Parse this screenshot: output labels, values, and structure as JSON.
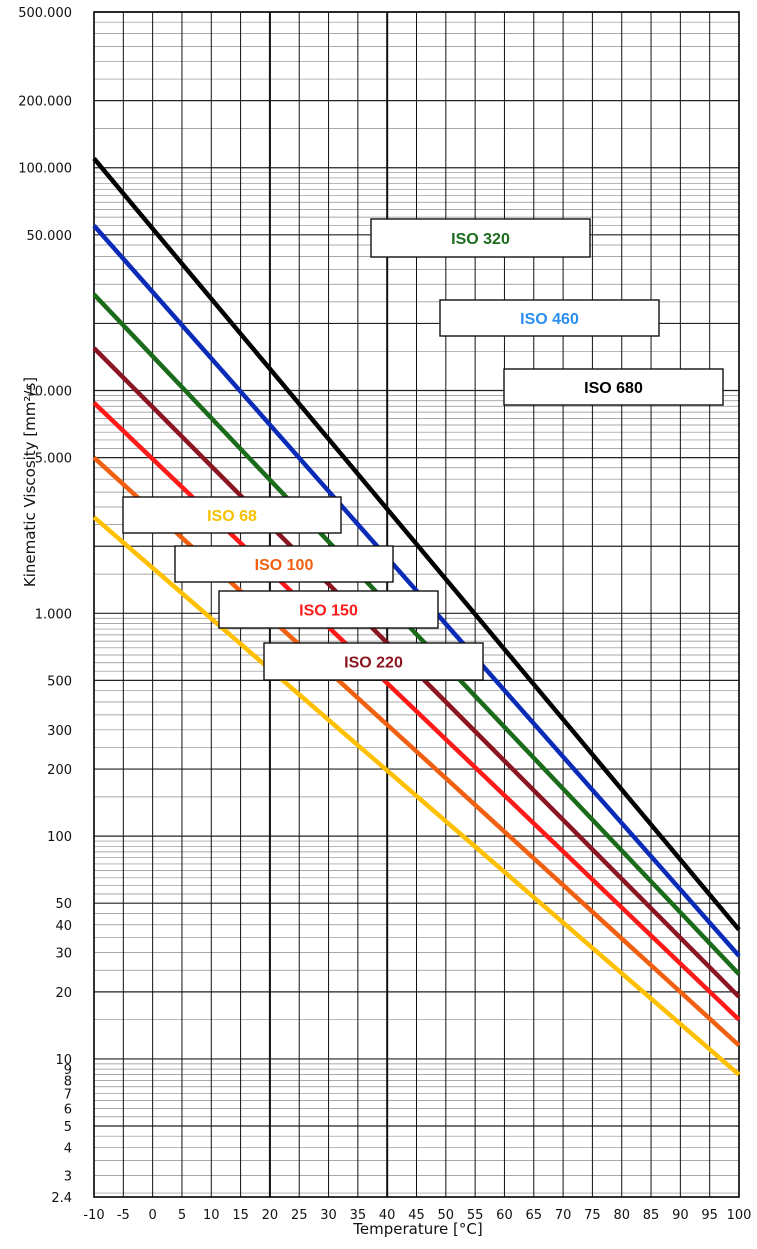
{
  "chart_data": {
    "type": "line",
    "title": "",
    "xlabel": "Temperature  [°C]",
    "ylabel": "Kinematic  Viscosity  [mm²/s]",
    "x_scale": "linear",
    "y_scale": "log",
    "xlim": [
      -10,
      100
    ],
    "ylim": [
      2.4,
      500000
    ],
    "grid": true,
    "x_ticks": [
      "-10",
      "-5",
      "0",
      "5",
      "10",
      "15",
      "20",
      "25",
      "30",
      "35",
      "40",
      "45",
      "50",
      "55",
      "60",
      "65",
      "70",
      "75",
      "80",
      "85",
      "90",
      "95",
      "100"
    ],
    "y_ticks": [
      {
        "v": 500000,
        "t": "500.000"
      },
      {
        "v": 200000,
        "t": "200.000"
      },
      {
        "v": 100000,
        "t": "100.000"
      },
      {
        "v": 50000,
        "t": "50.000"
      },
      {
        "v": 10000,
        "t": "10.000"
      },
      {
        "v": 5000,
        "t": "5.000"
      },
      {
        "v": 1000,
        "t": "1.000"
      },
      {
        "v": 500,
        "t": "500"
      },
      {
        "v": 300,
        "t": "300"
      },
      {
        "v": 200,
        "t": "200"
      },
      {
        "v": 100,
        "t": "100"
      },
      {
        "v": 50,
        "t": "50"
      },
      {
        "v": 40,
        "t": "40"
      },
      {
        "v": 30,
        "t": "30"
      },
      {
        "v": 20,
        "t": "20"
      },
      {
        "v": 10,
        "t": "10"
      },
      {
        "v": 9,
        "t": "9"
      },
      {
        "v": 8,
        "t": "8"
      },
      {
        "v": 7,
        "t": "7"
      },
      {
        "v": 6,
        "t": "6"
      },
      {
        "v": 5,
        "t": "5"
      },
      {
        "v": 4,
        "t": "4"
      },
      {
        "v": 3,
        "t": "3"
      },
      {
        "v": 2.4,
        "t": "2.4"
      }
    ],
    "series": [
      {
        "name": "ISO 680",
        "color": "#000000",
        "x": [
          -10,
          100
        ],
        "y": [
          110000,
          38
        ]
      },
      {
        "name": "ISO 460",
        "color": "#0a2bb8",
        "x": [
          -10,
          100
        ],
        "y": [
          55000,
          29
        ]
      },
      {
        "name": "ISO 320",
        "color": "#1a6b1a",
        "x": [
          -10,
          100
        ],
        "y": [
          27000,
          24
        ]
      },
      {
        "name": "ISO 220",
        "color": "#8b1520",
        "x": [
          -10,
          100
        ],
        "y": [
          15500,
          19
        ]
      },
      {
        "name": "ISO 150",
        "color": "#ff1a1a",
        "x": [
          -10,
          100
        ],
        "y": [
          8800,
          15
        ]
      },
      {
        "name": "ISO 100",
        "color": "#f06010",
        "x": [
          -10,
          100
        ],
        "y": [
          5000,
          11.5
        ]
      },
      {
        "name": "ISO 68",
        "color": "#ffc000",
        "x": [
          -10,
          100
        ],
        "y": [
          2700,
          8.5
        ]
      }
    ],
    "labels": [
      {
        "text": "ISO 320",
        "color": "#1a6b1a"
      },
      {
        "text": "ISO 460",
        "color": "#2a8ef0"
      },
      {
        "text": "ISO 680",
        "color": "#000000"
      },
      {
        "text": "ISO 68",
        "color": "#f5c000"
      },
      {
        "text": "ISO 100",
        "color": "#f06010"
      },
      {
        "text": "ISO 150",
        "color": "#ff1a1a"
      },
      {
        "text": "ISO 220",
        "color": "#8b1520"
      }
    ]
  }
}
